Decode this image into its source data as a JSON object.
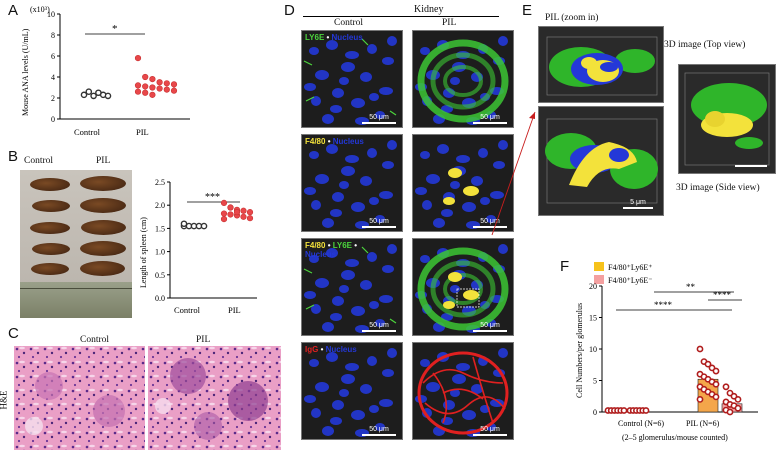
{
  "panel_labels": {
    "a": "A",
    "b": "B",
    "c": "C",
    "d": "D",
    "e": "E",
    "f": "F"
  },
  "panel_a": {
    "multiplier": "(x10³)",
    "ylabel": "Mouse ANA levels (U/mL)",
    "significance": "*",
    "yticks": [
      "0",
      "2",
      "4",
      "6",
      "8",
      "10"
    ],
    "categories": [
      "Control",
      "PIL"
    ]
  },
  "panel_b": {
    "photo_labels": [
      "Control",
      "PIL"
    ],
    "ylabel": "Length of spleen (cm)",
    "significance": "***",
    "yticks": [
      "0.0",
      "0.5",
      "1.0",
      "1.5",
      "2.0",
      "2.5"
    ],
    "categories": [
      "Control",
      "PIL"
    ]
  },
  "panel_c": {
    "col_labels": [
      "Control",
      "PIL"
    ],
    "row_label": "H&E"
  },
  "panel_d": {
    "tissue": "Kidney",
    "col_labels": [
      "Control",
      "PIL"
    ],
    "rows": [
      {
        "channel_a": "LY6E",
        "sep": " • ",
        "channel_b": "Nucleus"
      },
      {
        "channel_a": "F4/80",
        "sep": " • ",
        "channel_b": "Nucleus"
      },
      {
        "channel_a": "F4/80",
        "sep": " • ",
        "channel_b": "LY6E",
        "sep2": " • ",
        "channel_c": "Nucleus"
      },
      {
        "channel_a": "IgG",
        "sep": " • ",
        "channel_b": "Nucleus"
      }
    ],
    "scalebar": "50 μm"
  },
  "panel_e": {
    "title": "PIL (zoom in)",
    "top_view": "3D image  (Top view)",
    "side_view": "3D image  (Side view)",
    "scale_small": "5 μm"
  },
  "panel_f": {
    "ylabel": "Cell Numbers/per glomerulus",
    "legend": [
      "F4/80⁺Ly6E⁺",
      "F4/80⁺Ly6E⁻"
    ],
    "yticks": [
      "0",
      "5",
      "10",
      "15",
      "20"
    ],
    "categories": [
      "Control (N=6)",
      "PIL (N=6)"
    ],
    "footnote": "(2–5 glomerulus/mouse counted)",
    "significance": [
      "****",
      "**",
      "****"
    ]
  },
  "colors": {
    "control_dot": "#888888",
    "pil_dot": "#e8474a",
    "yellow_bar": "#f4a64a",
    "red_marker": "#b01c1c",
    "legend_yellow": "#f6c21b",
    "legend_pink": "#f4a0a0",
    "ly6e": "#4cd43c",
    "f480": "#f3e23b",
    "igg": "#e02020",
    "nucleus": "#2438d8"
  },
  "chart_data": [
    {
      "type": "scatter",
      "title": "",
      "ylabel": "Mouse ANA levels (U/mL)",
      "ylim": [
        0,
        10
      ],
      "categories": [
        "Control",
        "PIL"
      ],
      "series": [
        {
          "name": "Control",
          "values": [
            2.3,
            2.6,
            2.2,
            2.5,
            2.3,
            2.2
          ]
        },
        {
          "name": "PIL",
          "values": [
            5.8,
            4.0,
            3.8,
            3.5,
            3.4,
            3.3,
            3.2,
            3.1,
            3.0,
            2.9,
            2.8,
            2.7,
            2.6,
            2.5,
            2.3
          ]
        }
      ]
    },
    {
      "type": "scatter",
      "title": "",
      "ylabel": "Length of spleen (cm)",
      "ylim": [
        0,
        2.5
      ],
      "categories": [
        "Control",
        "PIL"
      ],
      "series": [
        {
          "name": "Control",
          "values": [
            1.55,
            1.55,
            1.55,
            1.55,
            1.55,
            1.6
          ]
        },
        {
          "name": "PIL",
          "values": [
            2.05,
            1.95,
            1.9,
            1.88,
            1.85,
            1.82,
            1.8,
            1.78,
            1.75,
            1.72,
            1.7,
            1.95,
            1.85
          ]
        }
      ]
    },
    {
      "type": "bar",
      "title": "",
      "ylabel": "Cell Numbers/per glomerulus",
      "ylim": [
        0,
        20
      ],
      "categories": [
        "Control (N=6)",
        "PIL (N=6)"
      ],
      "series": [
        {
          "name": "F4/80⁺Ly6E⁺",
          "values": [
            0,
            5.2
          ]
        },
        {
          "name": "F4/80⁺Ly6E⁻",
          "values": [
            0,
            1.3
          ]
        }
      ],
      "points": {
        "pil_pos": [
          10,
          8,
          7.6,
          7,
          6.5,
          6,
          5.6,
          5.2,
          4.8,
          4.4,
          4,
          3.6,
          3.2,
          2.8,
          2.4,
          2
        ],
        "pil_neg": [
          4,
          3,
          2.5,
          2,
          1.6,
          1.2,
          1,
          0.6,
          0.3,
          0
        ]
      }
    }
  ]
}
